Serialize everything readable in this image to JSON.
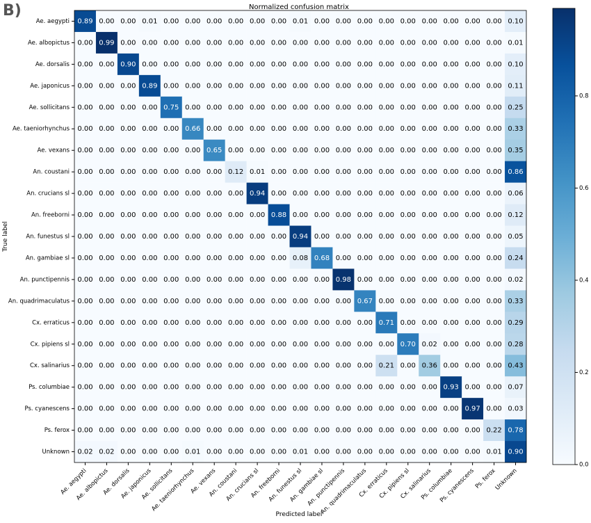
{
  "panel_label": "B)",
  "chart_data": {
    "type": "heatmap",
    "title": "Normalized confusion matrix",
    "xlabel": "Predicted label",
    "ylabel": "True label",
    "colormap": "Blues",
    "x_categories": [
      "Ae. aegypti",
      "Ae. albopictus",
      "Ae. dorsalis",
      "Ae. japonicus",
      "Ae. sollicitans",
      "Ae. taeniorhynchus",
      "Ae. vexans",
      "An. coustani",
      "An. crucians sl",
      "An. freeborni",
      "An. funestus sl",
      "An. gambiae sl",
      "An. punctipennis",
      "An. quadrimaculatus",
      "Cx. erraticus",
      "Cx. pipiens sl",
      "Cx. salinarius",
      "Ps. columbiae",
      "Ps. cyanescens",
      "Ps. ferox",
      "Unknown"
    ],
    "y_categories": [
      "Ae. aegypti",
      "Ae. albopictus",
      "Ae. dorsalis",
      "Ae. japonicus",
      "Ae. sollicitans",
      "Ae. taeniorhynchus",
      "Ae. vexans",
      "An. coustani",
      "An. crucians sl",
      "An. freeborni",
      "An. funestus sl",
      "An. gambiae sl",
      "An. punctipennis",
      "An. quadrimaculatus",
      "Cx. erraticus",
      "Cx. pipiens sl",
      "Cx. salinarius",
      "Ps. columbiae",
      "Ps. cyanescens",
      "Ps. ferox",
      "Unknown"
    ],
    "values": [
      [
        0.89,
        0,
        0,
        0.01,
        0,
        0,
        0,
        0,
        0,
        0,
        0.01,
        0,
        0,
        0,
        0,
        0,
        0,
        0,
        0,
        0,
        0.1
      ],
      [
        0,
        0.99,
        0,
        0,
        0,
        0,
        0,
        0,
        0,
        0,
        0,
        0,
        0,
        0,
        0,
        0,
        0,
        0,
        0,
        0,
        0.01
      ],
      [
        0,
        0,
        0.9,
        0,
        0,
        0,
        0,
        0,
        0,
        0,
        0,
        0,
        0,
        0,
        0,
        0,
        0,
        0,
        0,
        0,
        0.1
      ],
      [
        0,
        0,
        0,
        0.89,
        0,
        0,
        0,
        0,
        0,
        0,
        0,
        0,
        0,
        0,
        0,
        0,
        0,
        0,
        0,
        0,
        0.11
      ],
      [
        0,
        0,
        0,
        0,
        0.75,
        0,
        0,
        0,
        0,
        0,
        0,
        0,
        0,
        0,
        0,
        0,
        0,
        0,
        0,
        0,
        0.25
      ],
      [
        0,
        0,
        0,
        0,
        0,
        0.66,
        0,
        0,
        0,
        0,
        0,
        0,
        0,
        0,
        0,
        0,
        0,
        0,
        0,
        0,
        0.33
      ],
      [
        0,
        0,
        0,
        0,
        0,
        0,
        0.65,
        0,
        0,
        0,
        0,
        0,
        0,
        0,
        0,
        0,
        0,
        0,
        0,
        0,
        0.35
      ],
      [
        0,
        0,
        0,
        0,
        0,
        0,
        0,
        0.12,
        0.01,
        0,
        0,
        0,
        0,
        0,
        0,
        0,
        0,
        0,
        0,
        0,
        0.86
      ],
      [
        0,
        0,
        0,
        0,
        0,
        0,
        0,
        0,
        0.94,
        0,
        0,
        0,
        0,
        0,
        0,
        0,
        0,
        0,
        0,
        0,
        0.06
      ],
      [
        0,
        0,
        0,
        0,
        0,
        0,
        0,
        0,
        0,
        0.88,
        0,
        0,
        0,
        0,
        0,
        0,
        0,
        0,
        0,
        0,
        0.12
      ],
      [
        0,
        0,
        0,
        0,
        0,
        0,
        0,
        0,
        0,
        0,
        0.94,
        0,
        0,
        0,
        0,
        0,
        0,
        0,
        0,
        0,
        0.05
      ],
      [
        0,
        0,
        0,
        0,
        0,
        0,
        0,
        0,
        0,
        0,
        0.08,
        0.68,
        0,
        0,
        0,
        0,
        0,
        0,
        0,
        0,
        0.24
      ],
      [
        0,
        0,
        0,
        0,
        0,
        0,
        0,
        0,
        0,
        0,
        0,
        0,
        0.98,
        0,
        0,
        0,
        0,
        0,
        0,
        0,
        0.02
      ],
      [
        0,
        0,
        0,
        0,
        0,
        0,
        0,
        0,
        0,
        0,
        0,
        0,
        0,
        0.67,
        0,
        0,
        0,
        0,
        0,
        0,
        0.33
      ],
      [
        0,
        0,
        0,
        0,
        0,
        0,
        0,
        0,
        0,
        0,
        0,
        0,
        0,
        0,
        0.71,
        0,
        0,
        0,
        0,
        0,
        0.29
      ],
      [
        0,
        0,
        0,
        0,
        0,
        0,
        0,
        0,
        0,
        0,
        0,
        0,
        0,
        0,
        0,
        0.7,
        0.02,
        0,
        0,
        0,
        0.28
      ],
      [
        0,
        0,
        0,
        0,
        0,
        0,
        0,
        0,
        0,
        0,
        0,
        0,
        0,
        0,
        0.21,
        0,
        0.36,
        0,
        0,
        0,
        0.43
      ],
      [
        0,
        0,
        0,
        0,
        0,
        0,
        0,
        0,
        0,
        0,
        0,
        0,
        0,
        0,
        0,
        0,
        0,
        0.93,
        0,
        0,
        0.07
      ],
      [
        0,
        0,
        0,
        0,
        0,
        0,
        0,
        0,
        0,
        0,
        0,
        0,
        0,
        0,
        0,
        0,
        0,
        0,
        0.97,
        0,
        0.03
      ],
      [
        0,
        0,
        0,
        0,
        0,
        0,
        0,
        0,
        0,
        0,
        0,
        0,
        0,
        0,
        0,
        0,
        0,
        0,
        0,
        0.22,
        0.78
      ],
      [
        0.02,
        0.02,
        0,
        0,
        0,
        0.01,
        0,
        0,
        0,
        0,
        0.01,
        0,
        0,
        0,
        0,
        0,
        0,
        0,
        0,
        0.01,
        0.9
      ]
    ],
    "value_labels": [
      [
        "0.89",
        "0.00",
        "0.00",
        "0.01",
        "0.00",
        "0.00",
        "0.00",
        "0.00",
        "0.00",
        "0.00",
        "0.01",
        "0.00",
        "0.00",
        "0.00",
        "0.00",
        "0.00",
        "0.00",
        "0.00",
        "0.00",
        "0.00",
        "0.10"
      ],
      [
        "0.00",
        "0.99",
        "0.00",
        "0.00",
        "0.00",
        "0.00",
        "0.00",
        "0.00",
        "0.00",
        "0.00",
        "0.00",
        "0.00",
        "0.00",
        "0.00",
        "0.00",
        "0.00",
        "0.00",
        "0.00",
        "0.00",
        "0.00",
        "0.01"
      ],
      [
        "0.00",
        "0.00",
        "0.90",
        "0.00",
        "0.00",
        "0.00",
        "0.00",
        "0.00",
        "0.00",
        "0.00",
        "0.00",
        "0.00",
        "0.00",
        "0.00",
        "0.00",
        "0.00",
        "0.00",
        "0.00",
        "0.00",
        "0.00",
        "0.10"
      ],
      [
        "0.00",
        "0.00",
        "0.00",
        "0.89",
        "0.00",
        "0.00",
        "0.00",
        "0.00",
        "0.00",
        "0.00",
        "0.00",
        "0.00",
        "0.00",
        "0.00",
        "0.00",
        "0.00",
        "0.00",
        "0.00",
        "0.00",
        "0.00",
        "0.11"
      ],
      [
        "0.00",
        "0.00",
        "0.00",
        "0.00",
        "0.75",
        "0.00",
        "0.00",
        "0.00",
        "0.00",
        "0.00",
        "0.00",
        "0.00",
        "0.00",
        "0.00",
        "0.00",
        "0.00",
        "0.00",
        "0.00",
        "0.00",
        "0.00",
        "0.25"
      ],
      [
        "0.00",
        "0.00",
        "0.00",
        "0.00",
        "0.00",
        "0.66",
        "0.00",
        "0.00",
        "0.00",
        "0.00",
        "0.00",
        "0.00",
        "0.00",
        "0.00",
        "0.00",
        "0.00",
        "0.00",
        "0.00",
        "0.00",
        "0.00",
        "0.33"
      ],
      [
        "0.00",
        "0.00",
        "0.00",
        "0.00",
        "0.00",
        "0.00",
        "0.65",
        "0.00",
        "0.00",
        "0.00",
        "0.00",
        "0.00",
        "0.00",
        "0.00",
        "0.00",
        "0.00",
        "0.00",
        "0.00",
        "0.00",
        "0.00",
        "0.35"
      ],
      [
        "0.00",
        "0.00",
        "0.00",
        "0.00",
        "0.00",
        "0.00",
        "0.00",
        "0.12",
        "0.01",
        "0.00",
        "0.00",
        "0.00",
        "0.00",
        "0.00",
        "0.00",
        "0.00",
        "0.00",
        "0.00",
        "0.00",
        "0.00",
        "0.86"
      ],
      [
        "0.00",
        "0.00",
        "0.00",
        "0.00",
        "0.00",
        "0.00",
        "0.00",
        "0.00",
        "0.94",
        "0.00",
        "0.00",
        "0.00",
        "0.00",
        "0.00",
        "0.00",
        "0.00",
        "0.00",
        "0.00",
        "0.00",
        "0.00",
        "0.06"
      ],
      [
        "0.00",
        "0.00",
        "0.00",
        "0.00",
        "0.00",
        "0.00",
        "0.00",
        "0.00",
        "0.00",
        "0.88",
        "0.00",
        "0.00",
        "0.00",
        "0.00",
        "0.00",
        "0.00",
        "0.00",
        "0.00",
        "0.00",
        "0.00",
        "0.12"
      ],
      [
        "0.00",
        "0.00",
        "0.00",
        "0.00",
        "0.00",
        "0.00",
        "0.00",
        "0.00",
        "0.00",
        "0.00",
        "0.94",
        "0.00",
        "0.00",
        "0.00",
        "0.00",
        "0.00",
        "0.00",
        "0.00",
        "0.00",
        "0.00",
        "0.05"
      ],
      [
        "0.00",
        "0.00",
        "0.00",
        "0.00",
        "0.00",
        "0.00",
        "0.00",
        "0.00",
        "0.00",
        "0.00",
        "0.08",
        "0.68",
        "0.00",
        "0.00",
        "0.00",
        "0.00",
        "0.00",
        "0.00",
        "0.00",
        "0.00",
        "0.24"
      ],
      [
        "0.00",
        "0.00",
        "0.00",
        "0.00",
        "0.00",
        "0.00",
        "0.00",
        "0.00",
        "0.00",
        "0.00",
        "0.00",
        "0.00",
        "0.98",
        "0.00",
        "0.00",
        "0.00",
        "0.00",
        "0.00",
        "0.00",
        "0.00",
        "0.02"
      ],
      [
        "0.00",
        "0.00",
        "0.00",
        "0.00",
        "0.00",
        "0.00",
        "0.00",
        "0.00",
        "0.00",
        "0.00",
        "0.00",
        "0.00",
        "0.00",
        "0.67",
        "0.00",
        "0.00",
        "0.00",
        "0.00",
        "0.00",
        "0.00",
        "0.33"
      ],
      [
        "0.00",
        "0.00",
        "0.00",
        "0.00",
        "0.00",
        "0.00",
        "0.00",
        "0.00",
        "0.00",
        "0.00",
        "0.00",
        "0.00",
        "0.00",
        "0.00",
        "0.71",
        "0.00",
        "0.00",
        "0.00",
        "0.00",
        "0.00",
        "0.29"
      ],
      [
        "0.00",
        "0.00",
        "0.00",
        "0.00",
        "0.00",
        "0.00",
        "0.00",
        "0.00",
        "0.00",
        "0.00",
        "0.00",
        "0.00",
        "0.00",
        "0.00",
        "0.00",
        "0.70",
        "0.02",
        "0.00",
        "0.00",
        "0.00",
        "0.28"
      ],
      [
        "0.00",
        "0.00",
        "0.00",
        "0.00",
        "0.00",
        "0.00",
        "0.00",
        "0.00",
        "0.00",
        "0.00",
        "0.00",
        "0.00",
        "0.00",
        "0.00",
        "0.21",
        "0.00",
        "0.36",
        "0.00",
        "0.00",
        "0.00",
        "0.43"
      ],
      [
        "0.00",
        "0.00",
        "0.00",
        "0.00",
        "0.00",
        "0.00",
        "0.00",
        "0.00",
        "0.00",
        "0.00",
        "0.00",
        "0.00",
        "0.00",
        "0.00",
        "0.00",
        "0.00",
        "0.00",
        "0.93",
        "0.00",
        "0.00",
        "0.07"
      ],
      [
        "0.00",
        "0.00",
        "0.00",
        "0.00",
        "0.00",
        "0.00",
        "0.00",
        "0.00",
        "0.00",
        "0.00",
        "0.00",
        "0.00",
        "0.00",
        "0.00",
        "0.00",
        "0.00",
        "0.00",
        "0.00",
        "0.97",
        "0.00",
        "0.03"
      ],
      [
        "0.00",
        "0.00",
        "0.00",
        "0.00",
        "0.00",
        "0.00",
        "0.00",
        "0.00",
        "0.00",
        "0.00",
        "0.00",
        "0.00",
        "0.00",
        "0.00",
        "0.00",
        "0.00",
        "0.00",
        "0.00",
        "0.00",
        "0.22",
        "0.78"
      ],
      [
        "0.02",
        "0.02",
        "0.00",
        "0.00",
        "0.00",
        "0.01",
        "0.00",
        "0.00",
        "0.00",
        "0.00",
        "0.01",
        "0.00",
        "0.00",
        "0.00",
        "0.00",
        "0.00",
        "0.00",
        "0.00",
        "0.00",
        "0.01",
        "0.90"
      ]
    ],
    "clim": [
      0,
      0.99
    ],
    "cticks": [
      {
        "value": 0,
        "label": "0.0"
      },
      {
        "value": 0.2,
        "label": "0.2"
      },
      {
        "value": 0.4,
        "label": "0.4"
      },
      {
        "value": 0.6,
        "label": "0.6"
      },
      {
        "value": 0.8,
        "label": "0.8"
      }
    ]
  }
}
